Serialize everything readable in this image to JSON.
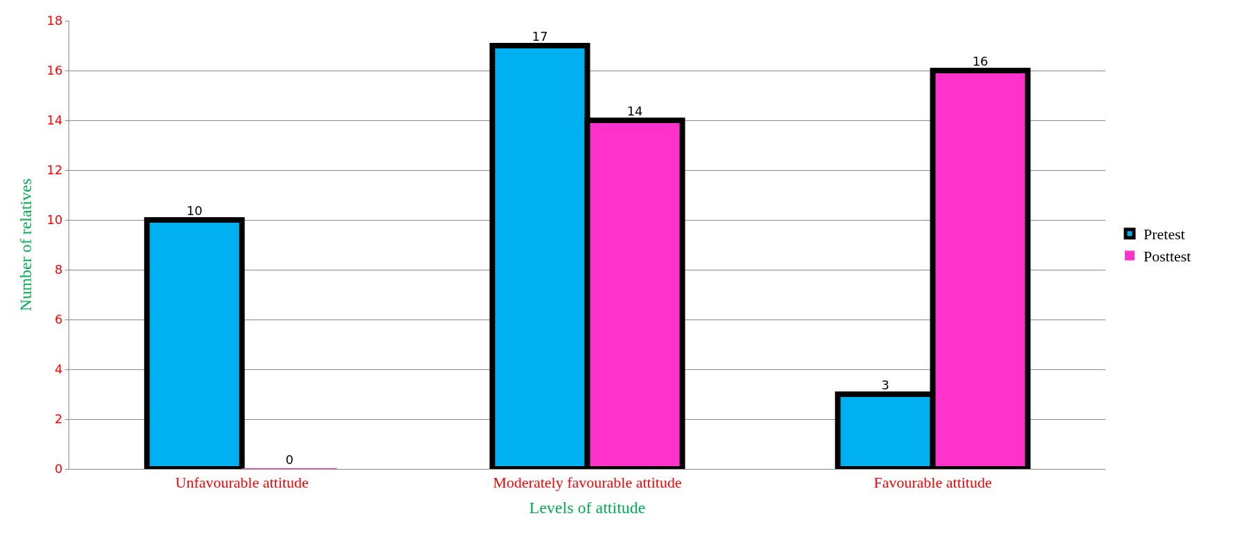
{
  "chart_data": {
    "type": "bar",
    "xlabel": "Levels of attitude",
    "ylabel": "Number of relatives",
    "categories": [
      "Unfavourable attitude",
      "Moderately favourable attitude",
      "Favourable attitude"
    ],
    "series": [
      {
        "name": "Pretest",
        "color": "#00b0f0",
        "values": [
          10,
          17,
          3
        ]
      },
      {
        "name": "Posttest",
        "color": "#ff33cc",
        "values": [
          0,
          14,
          16
        ]
      }
    ],
    "ylim": [
      0,
      18
    ],
    "yticks": [
      0,
      2,
      4,
      6,
      8,
      10,
      12,
      14,
      16,
      18
    ],
    "grid": "y",
    "legend": "right",
    "data_labels": true
  }
}
